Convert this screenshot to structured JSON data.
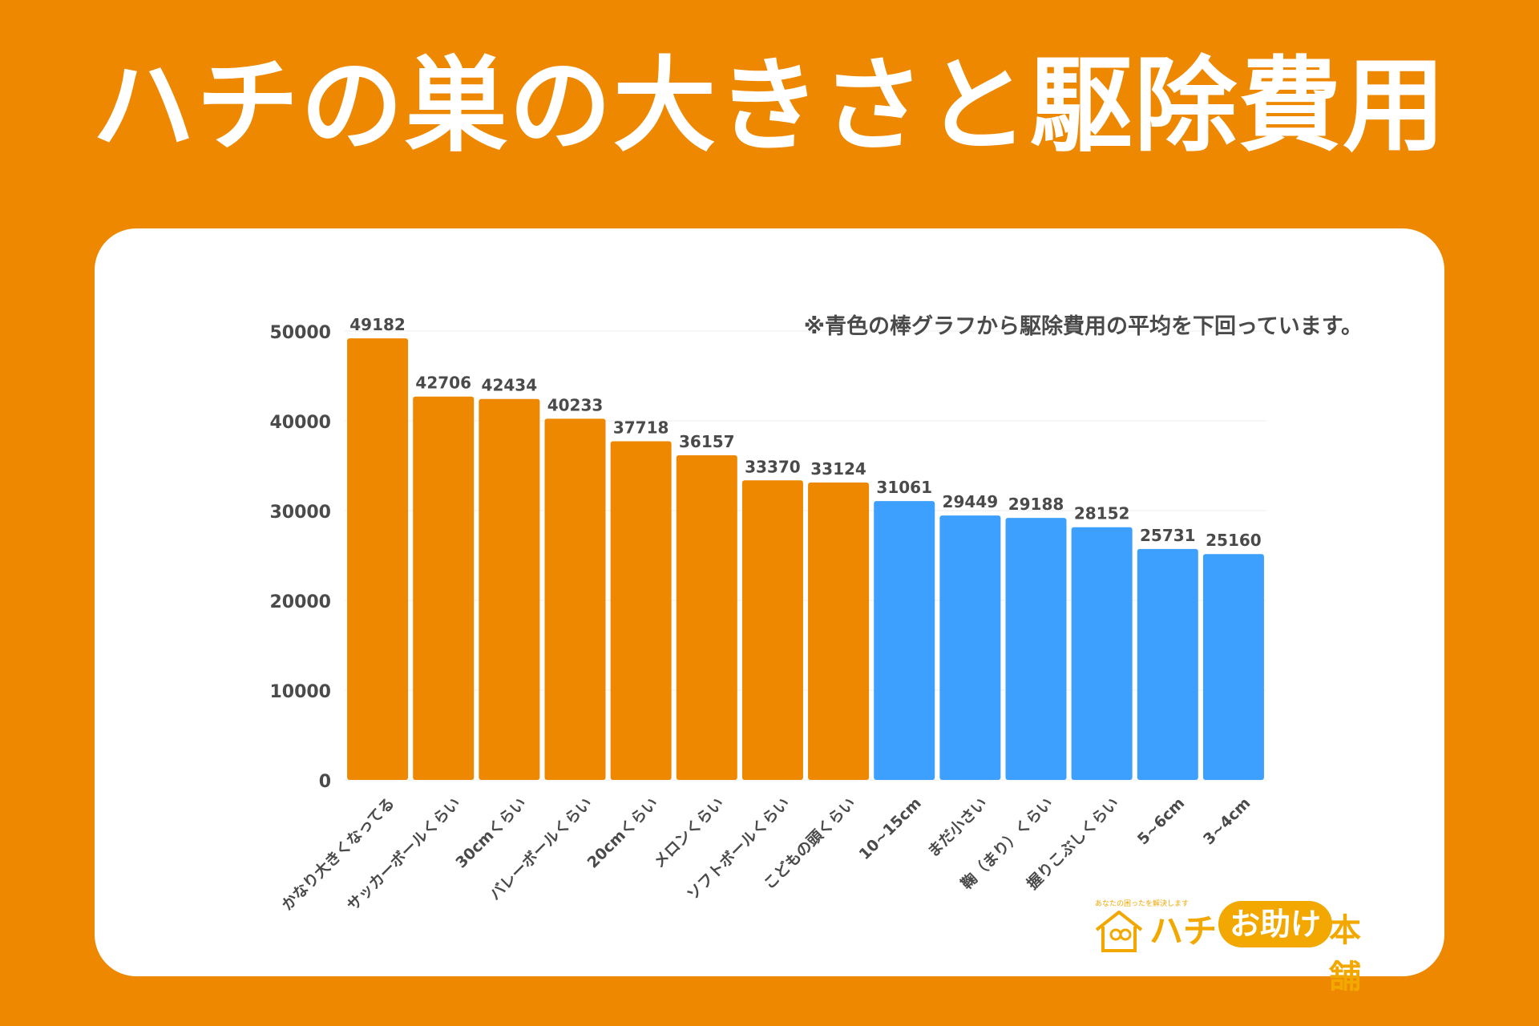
{
  "title": "ハチの巣の大きさと駆除費用",
  "note": "※青色の棒グラフから駆除費用の平均を下回っています。",
  "colors": {
    "background": "#EE8800",
    "above_average": "#EE8800",
    "below_average": "#3DA0FF",
    "axis_text": "#4a4a4a",
    "logo": "#F2A800"
  },
  "logo": {
    "tagline": "あなたの困ったを解決します",
    "part1": "ハチ",
    "part2": "お助け",
    "part3": "本舗",
    "icon": "house-icon"
  },
  "chart_data": {
    "type": "bar",
    "title": "ハチの巣の大きさと駆除費用",
    "xlabel": "",
    "ylabel": "",
    "ylim": [
      0,
      50000
    ],
    "yticks": [
      0,
      10000,
      20000,
      30000,
      40000,
      50000
    ],
    "categories": [
      "かなり大きくなってる",
      "サッカーボールくらい",
      "30cmくらい",
      "バレーボールくらい",
      "20cmくらい",
      "メロンくらい",
      "ソフトボールくらい",
      "こどもの頭くらい",
      "10~15cm",
      "まだ小さい",
      "鞠（まり）くらい",
      "握りこぶしくらい",
      "5~6cm",
      "3~4cm"
    ],
    "values": [
      49182,
      42706,
      42434,
      40233,
      37718,
      36157,
      33370,
      33124,
      31061,
      29449,
      29188,
      28152,
      25731,
      25160
    ],
    "bar_groups": [
      "above",
      "above",
      "above",
      "above",
      "above",
      "above",
      "above",
      "above",
      "below",
      "below",
      "below",
      "below",
      "below",
      "below"
    ],
    "grid": true,
    "legend": "none"
  }
}
